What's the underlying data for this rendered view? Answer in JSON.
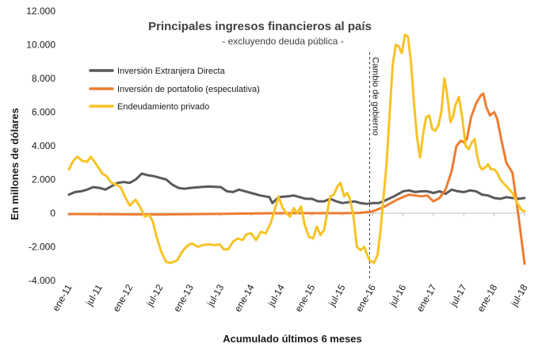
{
  "chart_data": {
    "type": "line",
    "title": "Principales ingresos financieros al país",
    "subtitle": "- excluyendo deuda pública -",
    "xlabel": "Acumulado últimos 6 meses",
    "ylabel": "En millones de dólares",
    "ylim": [
      -4000,
      12000
    ],
    "y_ticks": [
      {
        "value": 12000,
        "label": "12.000"
      },
      {
        "value": 10000,
        "label": "10.000"
      },
      {
        "value": 8000,
        "label": "8.000"
      },
      {
        "value": 6000,
        "label": "6.000"
      },
      {
        "value": 4000,
        "label": "4.000"
      },
      {
        "value": 2000,
        "label": "2.000"
      },
      {
        "value": 0,
        "label": "0"
      },
      {
        "value": -2000,
        "label": "-2.000"
      },
      {
        "value": -4000,
        "label": "-4.000"
      }
    ],
    "x_range": [
      2011.0,
      2018.5
    ],
    "x_ticks": [
      {
        "value": 2011.0,
        "label": "ene-11"
      },
      {
        "value": 2011.5,
        "label": "jul-11"
      },
      {
        "value": 2012.0,
        "label": "ene-12"
      },
      {
        "value": 2012.5,
        "label": "jul-12"
      },
      {
        "value": 2013.0,
        "label": "ene-13"
      },
      {
        "value": 2013.5,
        "label": "jul-13"
      },
      {
        "value": 2014.0,
        "label": "ene-14"
      },
      {
        "value": 2014.5,
        "label": "jul-14"
      },
      {
        "value": 2015.0,
        "label": "ene-15"
      },
      {
        "value": 2015.5,
        "label": "jul-15"
      },
      {
        "value": 2016.0,
        "label": "ene-16"
      },
      {
        "value": 2016.5,
        "label": "jul-16"
      },
      {
        "value": 2017.0,
        "label": "ene-17"
      },
      {
        "value": 2017.5,
        "label": "jul-17"
      },
      {
        "value": 2018.0,
        "label": "ene-18"
      },
      {
        "value": 2018.5,
        "label": "jul-18"
      }
    ],
    "annotation": {
      "x": 2015.95,
      "label": "Cambio de gobierno"
    },
    "legend_position": "top-left",
    "grid": false,
    "series": [
      {
        "name": "Inversión Extranjera Directa",
        "color": "#595959",
        "points": [
          [
            2011.0,
            1100
          ],
          [
            2011.1,
            1250
          ],
          [
            2011.2,
            1300
          ],
          [
            2011.3,
            1400
          ],
          [
            2011.4,
            1550
          ],
          [
            2011.5,
            1500
          ],
          [
            2011.6,
            1400
          ],
          [
            2011.7,
            1600
          ],
          [
            2011.8,
            1800
          ],
          [
            2011.9,
            1850
          ],
          [
            2012.0,
            1800
          ],
          [
            2012.1,
            2000
          ],
          [
            2012.2,
            2350
          ],
          [
            2012.3,
            2250
          ],
          [
            2012.4,
            2200
          ],
          [
            2012.5,
            2100
          ],
          [
            2012.6,
            2000
          ],
          [
            2012.7,
            1700
          ],
          [
            2012.8,
            1500
          ],
          [
            2012.9,
            1450
          ],
          [
            2013.0,
            1500
          ],
          [
            2013.15,
            1550
          ],
          [
            2013.3,
            1580
          ],
          [
            2013.5,
            1550
          ],
          [
            2013.6,
            1300
          ],
          [
            2013.7,
            1250
          ],
          [
            2013.8,
            1400
          ],
          [
            2013.9,
            1300
          ],
          [
            2014.0,
            1200
          ],
          [
            2014.15,
            1050
          ],
          [
            2014.3,
            950
          ],
          [
            2014.35,
            600
          ],
          [
            2014.45,
            950
          ],
          [
            2014.6,
            1000
          ],
          [
            2014.7,
            1050
          ],
          [
            2014.8,
            950
          ],
          [
            2014.9,
            850
          ],
          [
            2015.0,
            850
          ],
          [
            2015.1,
            700
          ],
          [
            2015.2,
            700
          ],
          [
            2015.3,
            850
          ],
          [
            2015.4,
            700
          ],
          [
            2015.5,
            600
          ],
          [
            2015.6,
            650
          ],
          [
            2015.7,
            700
          ],
          [
            2015.8,
            600
          ],
          [
            2015.9,
            550
          ],
          [
            2016.0,
            600
          ],
          [
            2016.1,
            600
          ],
          [
            2016.2,
            750
          ],
          [
            2016.35,
            1000
          ],
          [
            2016.5,
            1300
          ],
          [
            2016.6,
            1350
          ],
          [
            2016.7,
            1250
          ],
          [
            2016.8,
            1300
          ],
          [
            2016.9,
            1300
          ],
          [
            2017.0,
            1200
          ],
          [
            2017.1,
            1300
          ],
          [
            2017.2,
            1150
          ],
          [
            2017.3,
            1400
          ],
          [
            2017.4,
            1300
          ],
          [
            2017.5,
            1250
          ],
          [
            2017.6,
            1350
          ],
          [
            2017.7,
            1300
          ],
          [
            2017.8,
            1100
          ],
          [
            2017.9,
            1050
          ],
          [
            2018.0,
            900
          ],
          [
            2018.1,
            850
          ],
          [
            2018.2,
            950
          ],
          [
            2018.3,
            900
          ],
          [
            2018.4,
            850
          ],
          [
            2018.5,
            900
          ]
        ]
      },
      {
        "name": "Inversión de portafolio (especulativa)",
        "color": "#ed7d31",
        "points": [
          [
            2011.0,
            -50
          ],
          [
            2011.5,
            -60
          ],
          [
            2012.0,
            -70
          ],
          [
            2012.5,
            -80
          ],
          [
            2013.0,
            -60
          ],
          [
            2013.5,
            -40
          ],
          [
            2014.0,
            -20
          ],
          [
            2014.5,
            0
          ],
          [
            2015.0,
            0
          ],
          [
            2015.5,
            0
          ],
          [
            2015.8,
            20
          ],
          [
            2016.0,
            100
          ],
          [
            2016.2,
            400
          ],
          [
            2016.4,
            800
          ],
          [
            2016.6,
            1100
          ],
          [
            2016.8,
            1000
          ],
          [
            2016.9,
            1050
          ],
          [
            2017.0,
            700
          ],
          [
            2017.1,
            900
          ],
          [
            2017.2,
            1400
          ],
          [
            2017.3,
            2500
          ],
          [
            2017.38,
            4000
          ],
          [
            2017.45,
            4300
          ],
          [
            2017.5,
            4200
          ],
          [
            2017.55,
            4400
          ],
          [
            2017.62,
            5700
          ],
          [
            2017.7,
            6500
          ],
          [
            2017.78,
            7000
          ],
          [
            2017.82,
            7100
          ],
          [
            2017.87,
            6300
          ],
          [
            2017.93,
            5800
          ],
          [
            2018.0,
            6000
          ],
          [
            2018.05,
            5600
          ],
          [
            2018.12,
            4300
          ],
          [
            2018.2,
            3000
          ],
          [
            2018.3,
            2400
          ],
          [
            2018.36,
            900
          ],
          [
            2018.43,
            -1000
          ],
          [
            2018.5,
            -3000
          ]
        ]
      },
      {
        "name": "Endeudamiento privado",
        "color": "#f7c325",
        "points": [
          [
            2011.0,
            2600
          ],
          [
            2011.07,
            3100
          ],
          [
            2011.14,
            3350
          ],
          [
            2011.22,
            3100
          ],
          [
            2011.3,
            3050
          ],
          [
            2011.36,
            3350
          ],
          [
            2011.45,
            2900
          ],
          [
            2011.55,
            2350
          ],
          [
            2011.62,
            2200
          ],
          [
            2011.7,
            1800
          ],
          [
            2011.78,
            1700
          ],
          [
            2011.85,
            1550
          ],
          [
            2011.92,
            1000
          ],
          [
            2012.0,
            450
          ],
          [
            2012.1,
            800
          ],
          [
            2012.18,
            300
          ],
          [
            2012.25,
            -200
          ],
          [
            2012.32,
            -100
          ],
          [
            2012.38,
            -500
          ],
          [
            2012.45,
            -1500
          ],
          [
            2012.52,
            -2300
          ],
          [
            2012.6,
            -2900
          ],
          [
            2012.68,
            -2950
          ],
          [
            2012.78,
            -2800
          ],
          [
            2012.88,
            -2200
          ],
          [
            2012.96,
            -1900
          ],
          [
            2013.03,
            -1800
          ],
          [
            2013.12,
            -2000
          ],
          [
            2013.2,
            -1900
          ],
          [
            2013.3,
            -1850
          ],
          [
            2013.4,
            -1900
          ],
          [
            2013.48,
            -1850
          ],
          [
            2013.55,
            -2150
          ],
          [
            2013.62,
            -2150
          ],
          [
            2013.7,
            -1700
          ],
          [
            2013.78,
            -1500
          ],
          [
            2013.86,
            -1600
          ],
          [
            2013.92,
            -1250
          ],
          [
            2014.0,
            -1200
          ],
          [
            2014.08,
            -1600
          ],
          [
            2014.16,
            -1100
          ],
          [
            2014.24,
            -1200
          ],
          [
            2014.32,
            -600
          ],
          [
            2014.38,
            100
          ],
          [
            2014.45,
            1000
          ],
          [
            2014.52,
            300
          ],
          [
            2014.58,
            0
          ],
          [
            2014.64,
            -200
          ],
          [
            2014.7,
            300
          ],
          [
            2014.76,
            0
          ],
          [
            2014.82,
            400
          ],
          [
            2014.88,
            -700
          ],
          [
            2014.95,
            -1400
          ],
          [
            2015.02,
            -1500
          ],
          [
            2015.08,
            -800
          ],
          [
            2015.14,
            -1300
          ],
          [
            2015.2,
            -1000
          ],
          [
            2015.26,
            200
          ],
          [
            2015.3,
            1000
          ],
          [
            2015.36,
            1100
          ],
          [
            2015.42,
            1600
          ],
          [
            2015.47,
            1800
          ],
          [
            2015.53,
            1000
          ],
          [
            2015.58,
            1200
          ],
          [
            2015.62,
            900
          ],
          [
            2015.68,
            -100
          ],
          [
            2015.74,
            -2000
          ],
          [
            2015.8,
            -2200
          ],
          [
            2015.86,
            -2000
          ],
          [
            2015.9,
            -2400
          ],
          [
            2015.95,
            -2800
          ],
          [
            2016.02,
            -2950
          ],
          [
            2016.08,
            -2500
          ],
          [
            2016.13,
            -1000
          ],
          [
            2016.18,
            1000
          ],
          [
            2016.23,
            3000
          ],
          [
            2016.28,
            6000
          ],
          [
            2016.33,
            8800
          ],
          [
            2016.38,
            10000
          ],
          [
            2016.43,
            9900
          ],
          [
            2016.48,
            9500
          ],
          [
            2016.53,
            10600
          ],
          [
            2016.58,
            10500
          ],
          [
            2016.63,
            9000
          ],
          [
            2016.68,
            6500
          ],
          [
            2016.73,
            4500
          ],
          [
            2016.78,
            3300
          ],
          [
            2016.83,
            4700
          ],
          [
            2016.88,
            5700
          ],
          [
            2016.93,
            5800
          ],
          [
            2016.98,
            5000
          ],
          [
            2017.03,
            4900
          ],
          [
            2017.08,
            5200
          ],
          [
            2017.13,
            6000
          ],
          [
            2017.18,
            8000
          ],
          [
            2017.22,
            7200
          ],
          [
            2017.28,
            5400
          ],
          [
            2017.32,
            5700
          ],
          [
            2017.36,
            6400
          ],
          [
            2017.42,
            6900
          ],
          [
            2017.48,
            5500
          ],
          [
            2017.53,
            4000
          ],
          [
            2017.58,
            3800
          ],
          [
            2017.63,
            4200
          ],
          [
            2017.68,
            4400
          ],
          [
            2017.72,
            3400
          ],
          [
            2017.76,
            2800
          ],
          [
            2017.8,
            2600
          ],
          [
            2017.85,
            2700
          ],
          [
            2017.9,
            2900
          ],
          [
            2017.95,
            2600
          ],
          [
            2018.0,
            2600
          ],
          [
            2018.05,
            2400
          ],
          [
            2018.1,
            2000
          ],
          [
            2018.2,
            1600
          ],
          [
            2018.3,
            1200
          ],
          [
            2018.38,
            600
          ],
          [
            2018.45,
            200
          ],
          [
            2018.5,
            100
          ]
        ]
      }
    ]
  }
}
